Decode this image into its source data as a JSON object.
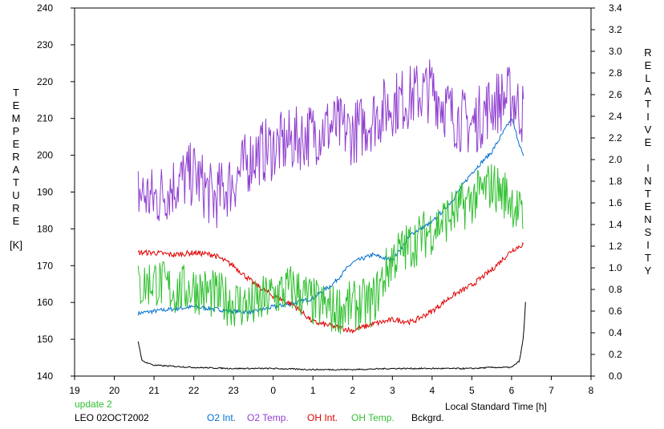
{
  "chart_data": {
    "type": "line",
    "xlabel": "Local Standard Time [h]",
    "ylabel_left_letters": [
      "T",
      "E",
      "M",
      "P",
      "E",
      "R",
      "A",
      "T",
      "U",
      "R",
      "E"
    ],
    "ylabel_left_unit": "[K]",
    "ylabel_right_words": [
      [
        "R",
        "E",
        "L",
        "A",
        "T",
        "I",
        "V",
        "E"
      ],
      [
        "I",
        "N",
        "T",
        "E",
        "N",
        "S",
        "I",
        "T",
        "Y"
      ]
    ],
    "x_tick_labels": [
      "19",
      "20",
      "21",
      "22",
      "23",
      "0",
      "1",
      "2",
      "3",
      "4",
      "5",
      "6",
      "7",
      "8"
    ],
    "xlim": [
      19,
      32
    ],
    "ylim_left": [
      140,
      240
    ],
    "ylim_right": [
      0.0,
      3.4
    ],
    "y_left_ticks": [
      140,
      150,
      160,
      170,
      180,
      190,
      200,
      210,
      220,
      230,
      240
    ],
    "y_right_ticks": [
      "0.0",
      "0.2",
      "0.4",
      "0.6",
      "0.8",
      "1.0",
      "1.2",
      "1.4",
      "1.6",
      "1.8",
      "2.0",
      "2.2",
      "2.4",
      "2.6",
      "2.8",
      "3.0",
      "3.2",
      "3.4"
    ],
    "grid": false,
    "notes": {
      "update": "update 2",
      "station": "LEO 02OCT2002"
    },
    "series": [
      {
        "name": "O2 Int.",
        "axis": "right",
        "color": "#0070d0",
        "x": [
          20.6,
          21,
          21.5,
          22,
          22.5,
          23,
          23.5,
          24,
          24.5,
          25,
          25.5,
          26,
          26.5,
          27,
          27.5,
          28,
          28.5,
          29,
          29.5,
          30,
          30.3
        ],
        "y": [
          0.58,
          0.6,
          0.62,
          0.64,
          0.62,
          0.6,
          0.59,
          0.64,
          0.67,
          0.72,
          0.85,
          1.05,
          1.12,
          1.07,
          1.32,
          1.42,
          1.62,
          1.88,
          2.07,
          2.38,
          2.02
        ]
      },
      {
        "name": "O2 Temp.",
        "axis": "left",
        "color": "#9040d0",
        "x": [
          20.6,
          21,
          21.5,
          22,
          22.5,
          23,
          23.5,
          24,
          24.5,
          25,
          25.5,
          26,
          26.5,
          27,
          27.5,
          28,
          28.5,
          29,
          29.5,
          30,
          30.3
        ],
        "y": [
          190,
          188,
          192,
          195,
          188,
          193,
          200,
          202,
          204,
          206,
          208,
          206,
          210,
          214,
          216,
          218,
          211,
          208,
          214,
          216,
          211
        ]
      },
      {
        "name": "OH Int.",
        "axis": "right",
        "color": "#e00000",
        "x": [
          20.6,
          21,
          21.5,
          22,
          22.5,
          23,
          23.5,
          24,
          24.5,
          25,
          25.5,
          26,
          26.5,
          27,
          27.5,
          28,
          28.5,
          29,
          29.5,
          30,
          30.3
        ],
        "y": [
          1.14,
          1.14,
          1.12,
          1.14,
          1.12,
          1.02,
          0.86,
          0.74,
          0.66,
          0.5,
          0.46,
          0.42,
          0.48,
          0.52,
          0.5,
          0.6,
          0.74,
          0.84,
          0.98,
          1.16,
          1.22
        ]
      },
      {
        "name": "OH Temp.",
        "axis": "left",
        "color": "#30c030",
        "x": [
          20.6,
          21,
          21.5,
          22,
          22.5,
          23,
          23.5,
          24,
          24.5,
          25,
          25.5,
          26,
          26.5,
          27,
          27.5,
          28,
          28.5,
          29,
          29.5,
          30,
          30.3
        ],
        "y": [
          164,
          166,
          163,
          164,
          162,
          160,
          159,
          162,
          164,
          160,
          158,
          159,
          160,
          172,
          176,
          180,
          184,
          188,
          192,
          188,
          182
        ]
      },
      {
        "name": "Bckgrd.",
        "axis": "right",
        "color": "#000000",
        "x": [
          20.6,
          20.7,
          21,
          21.5,
          22,
          23,
          24,
          25,
          26,
          27,
          28,
          29,
          29.5,
          30,
          30.2,
          30.3,
          30.35
        ],
        "y": [
          0.32,
          0.14,
          0.1,
          0.09,
          0.08,
          0.07,
          0.07,
          0.06,
          0.06,
          0.07,
          0.07,
          0.07,
          0.08,
          0.08,
          0.14,
          0.36,
          0.68
        ]
      }
    ]
  }
}
